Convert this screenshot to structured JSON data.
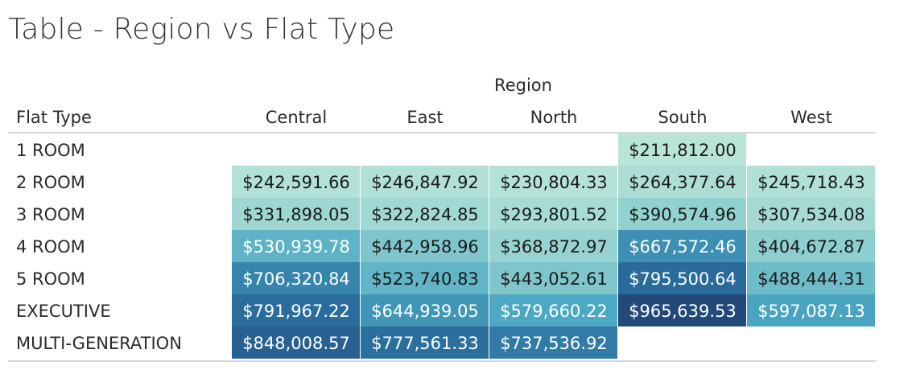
{
  "chart_data": {
    "type": "heatmap",
    "title": "Table - Region vs Flat Type",
    "column_group_label": "Region",
    "row_header_label": "Flat Type",
    "columns": [
      "Central",
      "East",
      "North",
      "South",
      "West"
    ],
    "rows": [
      "1 ROOM",
      "2 ROOM",
      "3 ROOM",
      "4 ROOM",
      "5 ROOM",
      "EXECUTIVE",
      "MULTI-GENERATION"
    ],
    "values": [
      [
        null,
        null,
        null,
        211812.0,
        null
      ],
      [
        242591.66,
        246847.92,
        230804.33,
        264377.64,
        245718.43
      ],
      [
        331898.05,
        322824.85,
        293801.52,
        390574.96,
        307534.08
      ],
      [
        530939.78,
        442958.96,
        368872.97,
        667572.46,
        404672.87
      ],
      [
        706320.84,
        523740.83,
        443052.61,
        795500.64,
        488444.31
      ],
      [
        791967.22,
        644939.05,
        579660.22,
        965639.53,
        597087.13
      ],
      [
        848008.57,
        777561.33,
        737536.92,
        null,
        null
      ]
    ],
    "labels": [
      [
        "",
        "",
        "",
        "$211,812.00",
        ""
      ],
      [
        "$242,591.66",
        "$246,847.92",
        "$230,804.33",
        "$264,377.64",
        "$245,718.43"
      ],
      [
        "$331,898.05",
        "$322,824.85",
        "$293,801.52",
        "$390,574.96",
        "$307,534.08"
      ],
      [
        "$530,939.78",
        "$442,958.96",
        "$368,872.97",
        "$667,572.46",
        "$404,672.87"
      ],
      [
        "$706,320.84",
        "$523,740.83",
        "$443,052.61",
        "$795,500.64",
        "$488,444.31"
      ],
      [
        "$791,967.22",
        "$644,939.05",
        "$579,660.22",
        "$965,639.53",
        "$597,087.13"
      ],
      [
        "$848,008.57",
        "$777,561.33",
        "$737,536.92",
        "",
        ""
      ]
    ],
    "color_scale": [
      "#b9e4d8",
      "#8fd0cf",
      "#4aa6c3",
      "#2b6f9f",
      "#22497a"
    ]
  }
}
